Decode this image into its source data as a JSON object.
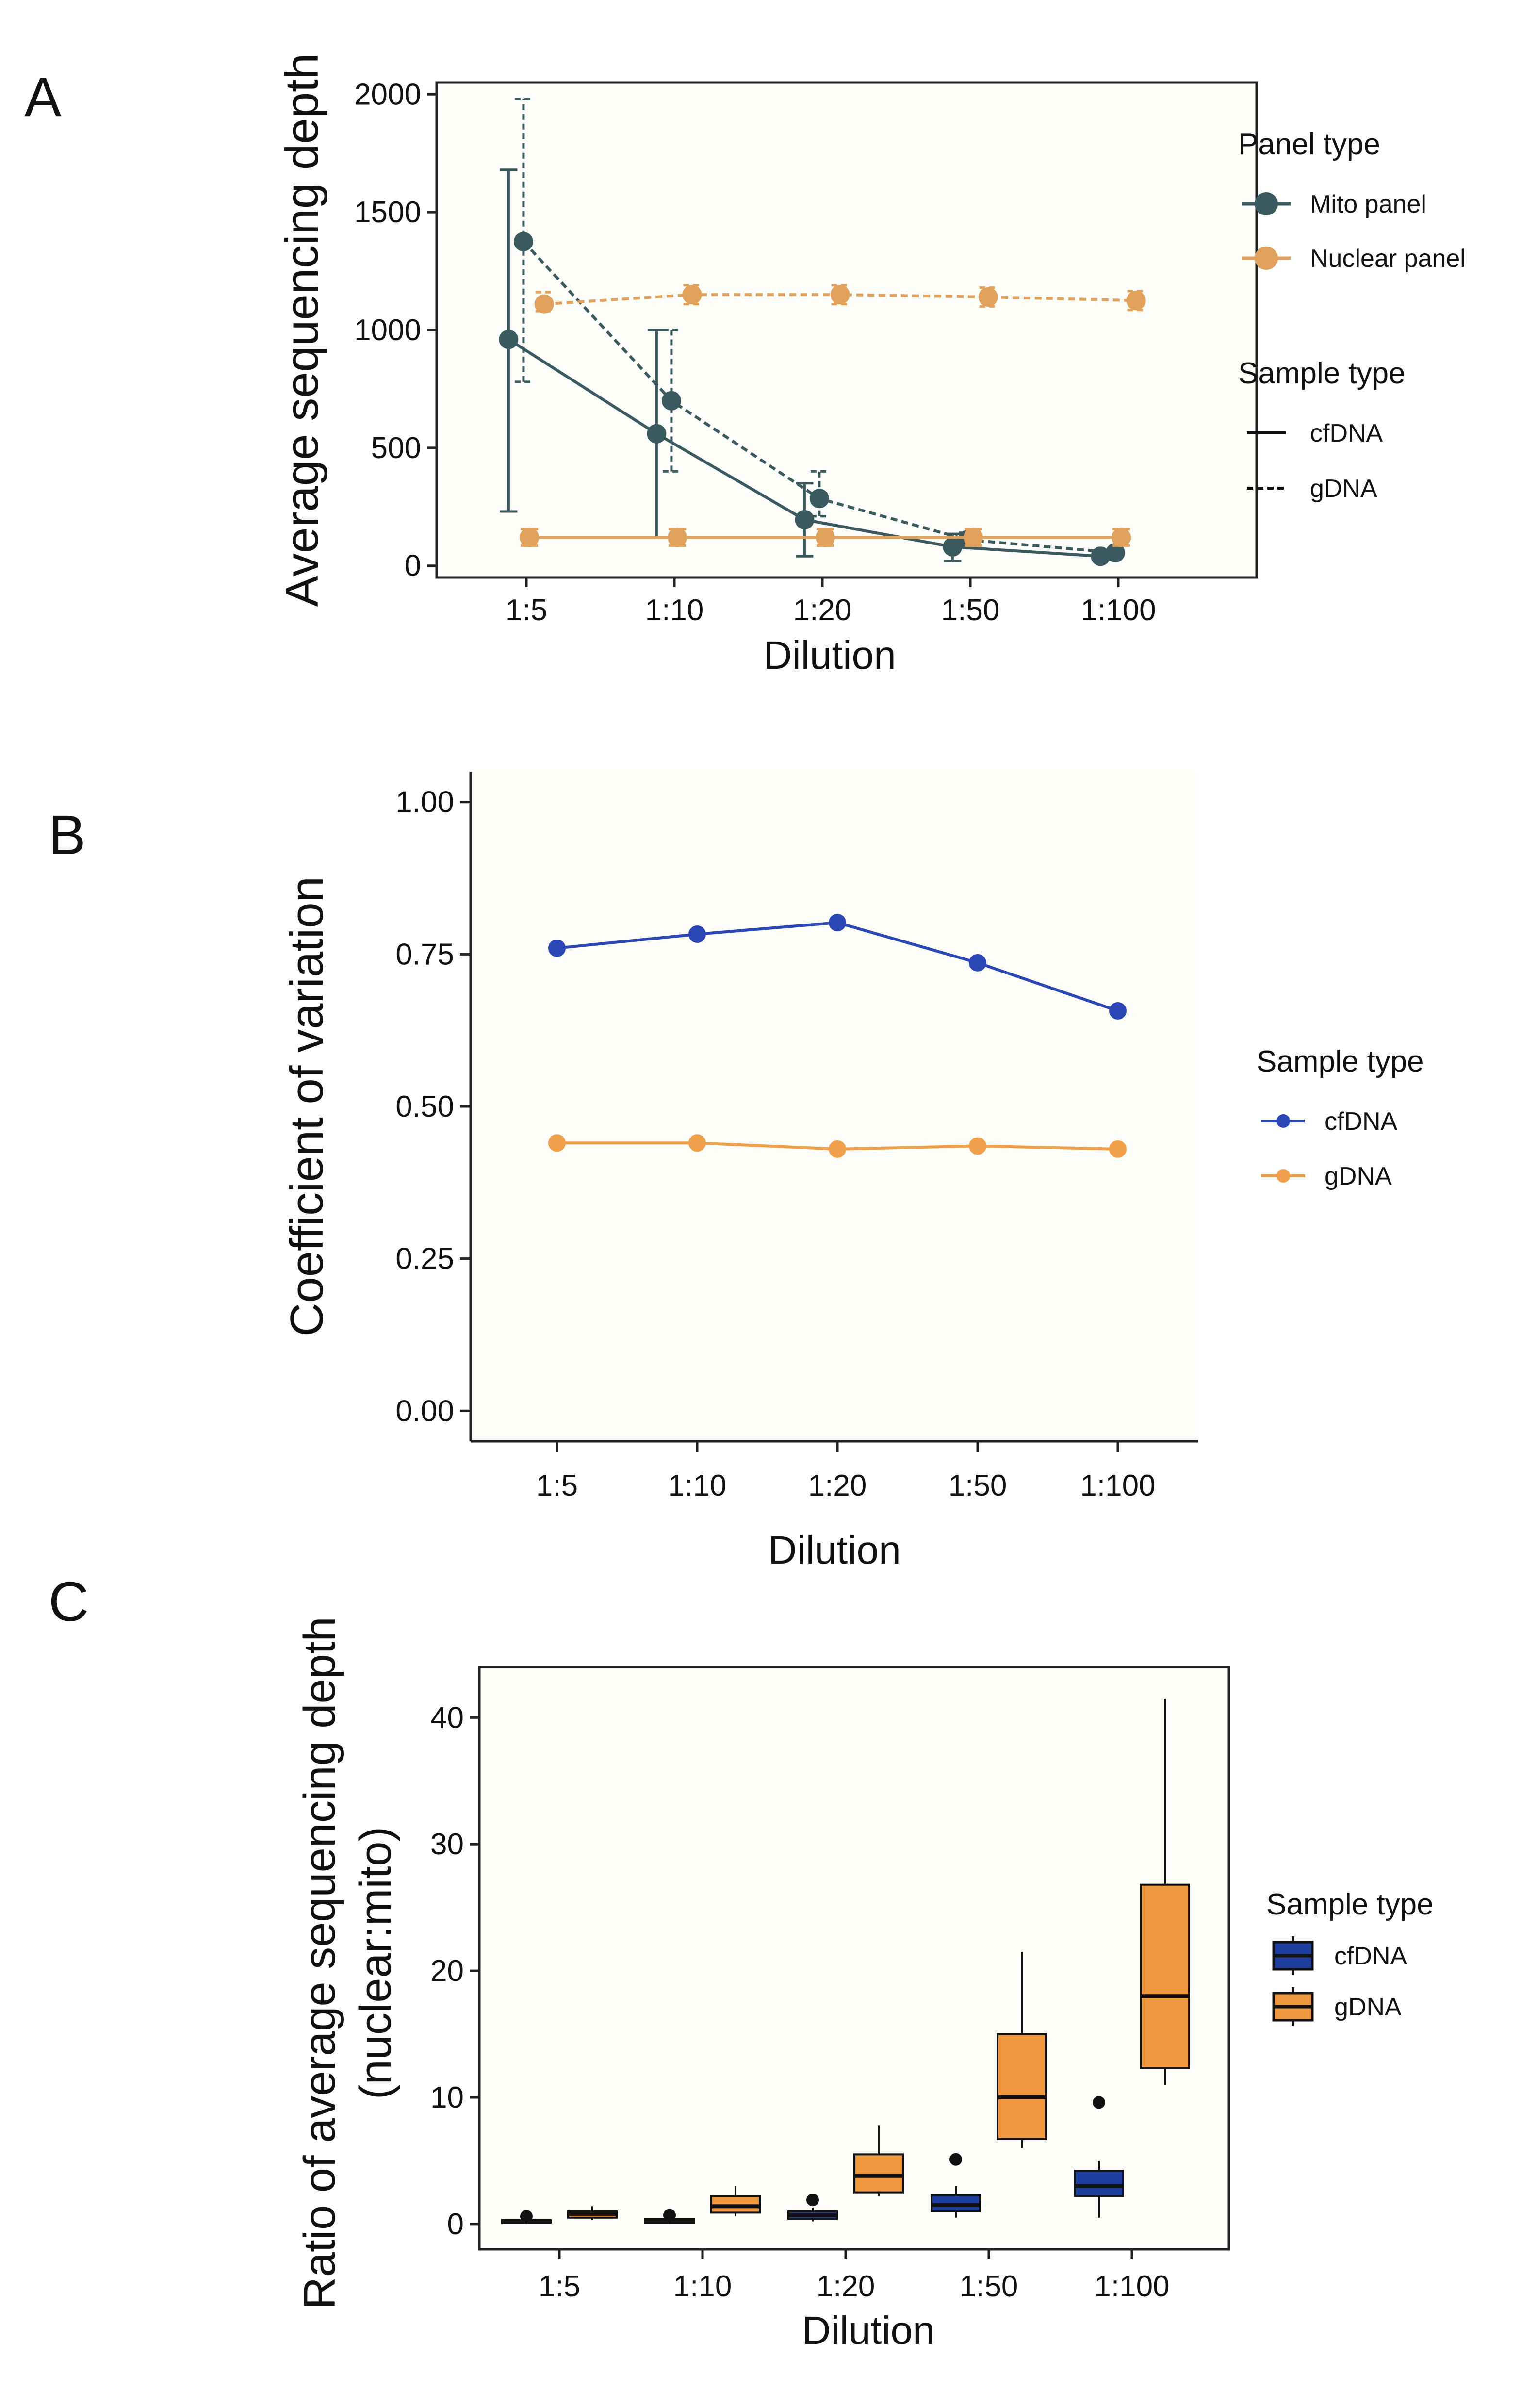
{
  "colors": {
    "mito": "#3b5a60",
    "nuclear": "#e0a15c",
    "cfdna_b": "#2b46b5",
    "gdna_b": "#f0a04b",
    "cfdna_c": "#1f3fa0",
    "gdna_c": "#ef9840"
  },
  "chart_data": [
    {
      "panel": "A",
      "type": "line",
      "title": "",
      "xlabel": "Dilution",
      "ylabel": "Average sequencing depth",
      "categories": [
        "1:5",
        "1:10",
        "1:20",
        "1:50",
        "1:100"
      ],
      "ylim": [
        -50,
        2050
      ],
      "yticks": [
        0,
        500,
        1000,
        1500,
        2000
      ],
      "ytick_labels": [
        "0",
        "500",
        "1000",
        "1500",
        "2000"
      ],
      "series": [
        {
          "name": "Mito panel cfDNA",
          "panel_type": "Mito panel",
          "sample_type": "cfDNA",
          "color_key": "mito",
          "dashed": false,
          "dodge": -0.12,
          "values": [
            960,
            560,
            195,
            80,
            40
          ],
          "err_low": [
            230,
            120,
            40,
            20,
            25
          ],
          "err_high": [
            1680,
            1000,
            350,
            135,
            60
          ]
        },
        {
          "name": "Mito panel gDNA",
          "panel_type": "Mito panel",
          "sample_type": "gDNA",
          "color_key": "mito",
          "dashed": true,
          "dodge": -0.02,
          "values": [
            1375,
            700,
            285,
            110,
            55
          ],
          "err_low": [
            780,
            400,
            210,
            85,
            40
          ],
          "err_high": [
            1980,
            1000,
            400,
            140,
            70
          ]
        },
        {
          "name": "Nuclear panel cfDNA",
          "panel_type": "Nuclear panel",
          "sample_type": "cfDNA",
          "color_key": "nuclear",
          "dashed": false,
          "dodge": 0.02,
          "values": [
            120,
            120,
            120,
            120,
            120
          ],
          "err_low": [
            85,
            85,
            85,
            85,
            85
          ],
          "err_high": [
            155,
            155,
            155,
            155,
            155
          ]
        },
        {
          "name": "Nuclear panel gDNA",
          "panel_type": "Nuclear panel",
          "sample_type": "gDNA",
          "color_key": "nuclear",
          "dashed": true,
          "dodge": 0.12,
          "values": [
            1110,
            1150,
            1150,
            1140,
            1125
          ],
          "err_low": [
            1080,
            1110,
            1110,
            1100,
            1085
          ],
          "err_high": [
            1160,
            1190,
            1190,
            1180,
            1165
          ]
        }
      ],
      "legend": {
        "panel_title": "Panel type",
        "panel_items": [
          {
            "label": "Mito panel",
            "color_key": "mito"
          },
          {
            "label": "Nuclear panel",
            "color_key": "nuclear"
          }
        ],
        "sample_title": "Sample type",
        "sample_items": [
          {
            "label": "cfDNA",
            "dashed": false
          },
          {
            "label": "gDNA",
            "dashed": true
          }
        ],
        "placement": "right"
      }
    },
    {
      "panel": "B",
      "type": "line",
      "title": "",
      "xlabel": "Dilution",
      "ylabel": "Coefficient of variation",
      "categories": [
        "1:5",
        "1:10",
        "1:20",
        "1:50",
        "1:100"
      ],
      "ylim": [
        -0.05,
        1.05
      ],
      "yticks": [
        0,
        0.25,
        0.5,
        0.75,
        1.0
      ],
      "ytick_labels": [
        "0.00",
        "0.25",
        "0.50",
        "0.75",
        "1.00"
      ],
      "series": [
        {
          "name": "cfDNA",
          "color_key": "cfdna_b",
          "values": [
            0.76,
            0.783,
            0.802,
            0.736,
            0.657
          ]
        },
        {
          "name": "gDNA",
          "color_key": "gdna_b",
          "values": [
            0.44,
            0.44,
            0.43,
            0.435,
            0.43
          ]
        }
      ],
      "legend": {
        "title": "Sample type",
        "items": [
          {
            "label": "cfDNA",
            "color_key": "cfdna_b"
          },
          {
            "label": "gDNA",
            "color_key": "gdna_b"
          }
        ],
        "placement": "right"
      }
    },
    {
      "panel": "C",
      "type": "box",
      "title": "",
      "xlabel": "Dilution",
      "ylabel": "Ratio of average sequencing depth",
      "ylabel2": "(nuclear:mito)",
      "categories": [
        "1:5",
        "1:10",
        "1:20",
        "1:50",
        "1:100"
      ],
      "ylim": [
        -2,
        44
      ],
      "yticks": [
        0,
        10,
        20,
        30,
        40
      ],
      "ytick_labels": [
        "0",
        "10",
        "20",
        "30",
        "40"
      ],
      "series": [
        {
          "name": "cfDNA",
          "color_key": "cfdna_c",
          "boxes": [
            {
              "min": 0.0,
              "q1": 0.1,
              "median": 0.2,
              "q3": 0.3,
              "max": 0.5,
              "outliers": [
                0.6
              ]
            },
            {
              "min": 0.0,
              "q1": 0.1,
              "median": 0.3,
              "q3": 0.4,
              "max": 0.6,
              "outliers": [
                0.7
              ]
            },
            {
              "min": 0.2,
              "q1": 0.4,
              "median": 0.7,
              "q3": 1.0,
              "max": 1.3,
              "outliers": [
                1.9
              ]
            },
            {
              "min": 0.5,
              "q1": 1.0,
              "median": 1.5,
              "q3": 2.3,
              "max": 3.0,
              "outliers": [
                5.1
              ]
            },
            {
              "min": 0.5,
              "q1": 2.2,
              "median": 3.0,
              "q3": 4.2,
              "max": 5.0,
              "outliers": [
                9.6
              ]
            }
          ]
        },
        {
          "name": "gDNA",
          "color_key": "gdna_c",
          "boxes": [
            {
              "min": 0.3,
              "q1": 0.5,
              "median": 0.8,
              "q3": 1.0,
              "max": 1.4,
              "outliers": []
            },
            {
              "min": 0.6,
              "q1": 0.9,
              "median": 1.4,
              "q3": 2.2,
              "max": 3.0,
              "outliers": []
            },
            {
              "min": 2.2,
              "q1": 2.5,
              "median": 3.8,
              "q3": 5.5,
              "max": 7.8,
              "outliers": []
            },
            {
              "min": 6.0,
              "q1": 6.7,
              "median": 10.0,
              "q3": 15.0,
              "max": 21.5,
              "outliers": []
            },
            {
              "min": 11.0,
              "q1": 12.3,
              "median": 18.0,
              "q3": 26.8,
              "max": 41.5,
              "outliers": []
            }
          ]
        }
      ],
      "legend": {
        "title": "Sample type",
        "items": [
          {
            "label": "cfDNA",
            "color_key": "cfdna_c"
          },
          {
            "label": "gDNA",
            "color_key": "gdna_c"
          }
        ],
        "placement": "right"
      }
    }
  ]
}
